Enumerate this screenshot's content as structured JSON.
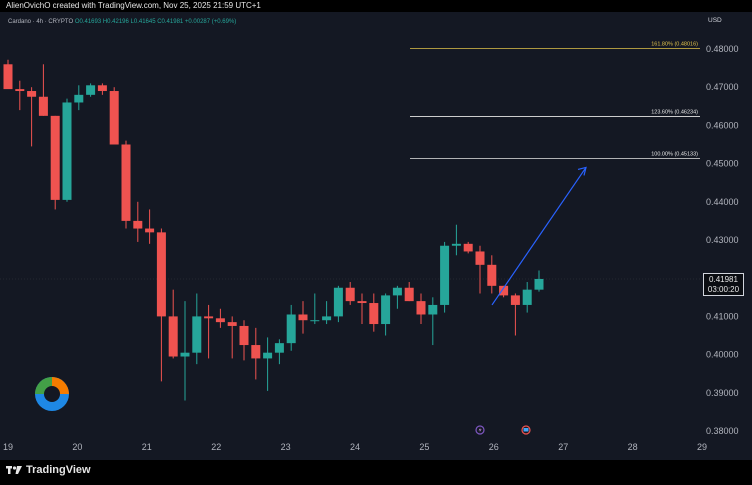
{
  "header": {
    "created_by": "AlienOvichO created with TradingView.com, Nov 25, 2025 21:59 UTC+1"
  },
  "legend": {
    "symbol": "Cardano · 4h · CRYPTO",
    "ohlc": "O0.41693 H0.42196 L0.41645 C0.41981 +0.00287 (+0.69%)"
  },
  "currency": "USD",
  "last_price": {
    "value": "0.41981",
    "countdown": "03:00:20"
  },
  "brand": "TradingView",
  "colors": {
    "up": "#26a69a",
    "down": "#ef5350",
    "fib": "#e6e6e6",
    "fib_top": "#e0c24b",
    "arrow": "#2962ff"
  },
  "icons": [
    "tradingview-logo-icon",
    "fibonacci-logo-icon",
    "lightning-event-icon",
    "flag-event-icon"
  ],
  "chart_data": {
    "type": "candlestick",
    "interval": "4h",
    "y_axis": {
      "ticks": [
        "0.48000",
        "0.47000",
        "0.46000",
        "0.45000",
        "0.44000",
        "0.43000",
        "0.42000",
        "0.41000",
        "0.40000",
        "0.39000",
        "0.38000"
      ],
      "ylim": [
        0.378,
        0.486
      ]
    },
    "x_axis": {
      "ticks": [
        "19",
        "20",
        "21",
        "22",
        "23",
        "24",
        "25",
        "26",
        "27",
        "28",
        "29"
      ]
    },
    "candles": [
      {
        "o": 0.476,
        "h": 0.4772,
        "l": 0.47,
        "c": 0.4695
      },
      {
        "o": 0.4695,
        "h": 0.4717,
        "l": 0.464,
        "c": 0.469
      },
      {
        "o": 0.469,
        "h": 0.47,
        "l": 0.4545,
        "c": 0.4675
      },
      {
        "o": 0.4675,
        "h": 0.476,
        "l": 0.4625,
        "c": 0.4625
      },
      {
        "o": 0.4625,
        "h": 0.4625,
        "l": 0.438,
        "c": 0.4405
      },
      {
        "o": 0.4405,
        "h": 0.467,
        "l": 0.44,
        "c": 0.466
      },
      {
        "o": 0.466,
        "h": 0.4705,
        "l": 0.464,
        "c": 0.468
      },
      {
        "o": 0.468,
        "h": 0.471,
        "l": 0.4675,
        "c": 0.4705
      },
      {
        "o": 0.4705,
        "h": 0.471,
        "l": 0.468,
        "c": 0.469
      },
      {
        "o": 0.469,
        "h": 0.47,
        "l": 0.455,
        "c": 0.455
      },
      {
        "o": 0.455,
        "h": 0.456,
        "l": 0.433,
        "c": 0.435
      },
      {
        "o": 0.435,
        "h": 0.44,
        "l": 0.4295,
        "c": 0.433
      },
      {
        "o": 0.433,
        "h": 0.438,
        "l": 0.429,
        "c": 0.432
      },
      {
        "o": 0.432,
        "h": 0.433,
        "l": 0.393,
        "c": 0.41
      },
      {
        "o": 0.41,
        "h": 0.417,
        "l": 0.399,
        "c": 0.3995
      },
      {
        "o": 0.3995,
        "h": 0.414,
        "l": 0.388,
        "c": 0.4005
      },
      {
        "o": 0.4005,
        "h": 0.416,
        "l": 0.3975,
        "c": 0.41
      },
      {
        "o": 0.41,
        "h": 0.413,
        "l": 0.399,
        "c": 0.4095
      },
      {
        "o": 0.4095,
        "h": 0.412,
        "l": 0.407,
        "c": 0.4085
      },
      {
        "o": 0.4085,
        "h": 0.41,
        "l": 0.399,
        "c": 0.4075
      },
      {
        "o": 0.4075,
        "h": 0.409,
        "l": 0.3985,
        "c": 0.4025
      },
      {
        "o": 0.4025,
        "h": 0.407,
        "l": 0.3935,
        "c": 0.399
      },
      {
        "o": 0.399,
        "h": 0.4045,
        "l": 0.3905,
        "c": 0.4005
      },
      {
        "o": 0.4005,
        "h": 0.404,
        "l": 0.3975,
        "c": 0.403
      },
      {
        "o": 0.403,
        "h": 0.413,
        "l": 0.401,
        "c": 0.4105
      },
      {
        "o": 0.4105,
        "h": 0.414,
        "l": 0.4055,
        "c": 0.409
      },
      {
        "o": 0.409,
        "h": 0.416,
        "l": 0.408,
        "c": 0.409
      },
      {
        "o": 0.409,
        "h": 0.414,
        "l": 0.408,
        "c": 0.41
      },
      {
        "o": 0.41,
        "h": 0.418,
        "l": 0.4085,
        "c": 0.4175
      },
      {
        "o": 0.4175,
        "h": 0.419,
        "l": 0.413,
        "c": 0.414
      },
      {
        "o": 0.414,
        "h": 0.416,
        "l": 0.408,
        "c": 0.4135
      },
      {
        "o": 0.4135,
        "h": 0.416,
        "l": 0.406,
        "c": 0.408
      },
      {
        "o": 0.408,
        "h": 0.416,
        "l": 0.405,
        "c": 0.4155
      },
      {
        "o": 0.4155,
        "h": 0.418,
        "l": 0.412,
        "c": 0.4175
      },
      {
        "o": 0.4175,
        "h": 0.419,
        "l": 0.414,
        "c": 0.414
      },
      {
        "o": 0.414,
        "h": 0.416,
        "l": 0.408,
        "c": 0.4105
      },
      {
        "o": 0.4105,
        "h": 0.415,
        "l": 0.4025,
        "c": 0.413
      },
      {
        "o": 0.413,
        "h": 0.4295,
        "l": 0.411,
        "c": 0.4285
      },
      {
        "o": 0.4285,
        "h": 0.434,
        "l": 0.426,
        "c": 0.429
      },
      {
        "o": 0.429,
        "h": 0.4295,
        "l": 0.4265,
        "c": 0.427
      },
      {
        "o": 0.427,
        "h": 0.4285,
        "l": 0.416,
        "c": 0.4235
      },
      {
        "o": 0.4235,
        "h": 0.426,
        "l": 0.416,
        "c": 0.418
      },
      {
        "o": 0.418,
        "h": 0.418,
        "l": 0.415,
        "c": 0.4155
      },
      {
        "o": 0.4155,
        "h": 0.416,
        "l": 0.405,
        "c": 0.413
      },
      {
        "o": 0.413,
        "h": 0.419,
        "l": 0.411,
        "c": 0.417
      },
      {
        "o": 0.417,
        "h": 0.422,
        "l": 0.4165,
        "c": 0.4198
      }
    ],
    "fib_levels": [
      {
        "label": "161.80% (0.48016)",
        "value": 0.48016
      },
      {
        "label": "123.60% (0.46234)",
        "value": 0.46234
      },
      {
        "label": "100.00% (0.45133)",
        "value": 0.45133
      }
    ],
    "projection_arrow": {
      "from": {
        "x": "25 12:00",
        "y": 0.413
      },
      "to": {
        "x": "27 08:00",
        "y": 0.449
      }
    },
    "last_price": 0.41981
  }
}
